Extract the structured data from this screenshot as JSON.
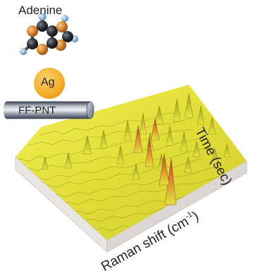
{
  "molecule": {
    "name": "Adenine",
    "icon": "adenine-molecule-icon"
  },
  "nanoparticle": {
    "label": "Ag",
    "color": "#f7b32c"
  },
  "nanotube": {
    "label": "FF-PNT",
    "color": "#4f5a6b"
  },
  "surface_plot": {
    "x_axis_prefix": "Raman shift (cm",
    "x_axis_exponent": "-1",
    "x_axis_suffix": ")",
    "y_axis": "Time (sec)",
    "surface_color": "#e4e23a",
    "peak_color": "#c0552a"
  }
}
